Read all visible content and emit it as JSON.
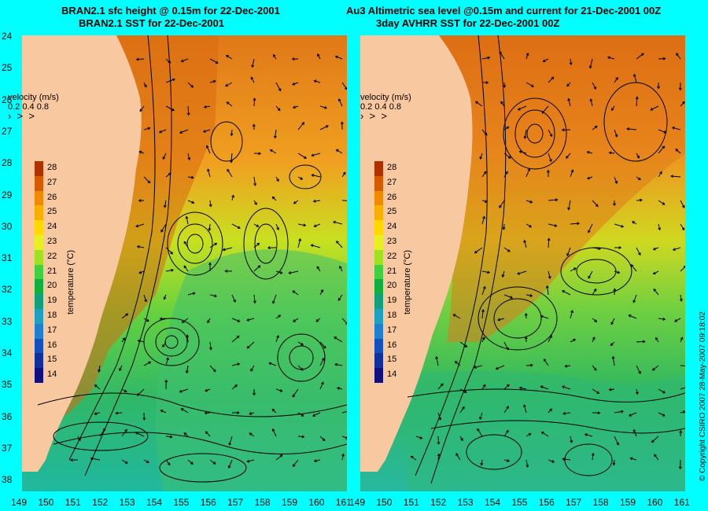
{
  "left_panel": {
    "title_line1": "BRAN2.1 sfc height @ 0.15m for 22-Dec-2001",
    "title_line2": "BRAN2.1 SST for 22-Dec-2001"
  },
  "right_panel": {
    "title_line1": "Au3 Altimetric sea level  @0.15m and current for 21-Dec-2001 00Z",
    "title_line2": "3day AVHRR SST for 22-Dec-2001 00Z"
  },
  "velocity_legend": {
    "title": "velocity (m/s)",
    "scale": "0.2 0.4 0.8"
  },
  "colorbar": {
    "label": "temperature (°C)",
    "ticks": [
      "28",
      "27",
      "26",
      "25",
      "24",
      "23",
      "22",
      "21",
      "20",
      "19",
      "18",
      "17",
      "16",
      "15",
      "14"
    ],
    "colors": [
      "#b03000",
      "#d85a00",
      "#f08a00",
      "#f8b000",
      "#ffd800",
      "#e8f020",
      "#a0e020",
      "#40d040",
      "#10b040",
      "#10a080",
      "#20a0c0",
      "#2080d0",
      "#1050c0",
      "#1030a0",
      "#101080"
    ]
  },
  "lat_ticks": [
    "24",
    "25",
    "26",
    "27",
    "28",
    "29",
    "30",
    "31",
    "32",
    "33",
    "34",
    "35",
    "36",
    "37",
    "38"
  ],
  "lon_ticks": [
    "149",
    "150",
    "151",
    "152",
    "153",
    "154",
    "155",
    "156",
    "157",
    "158",
    "159",
    "160",
    "161"
  ],
  "copyright": "© Copyright CSIRO 2007   28-May-2007 09:18:02"
}
